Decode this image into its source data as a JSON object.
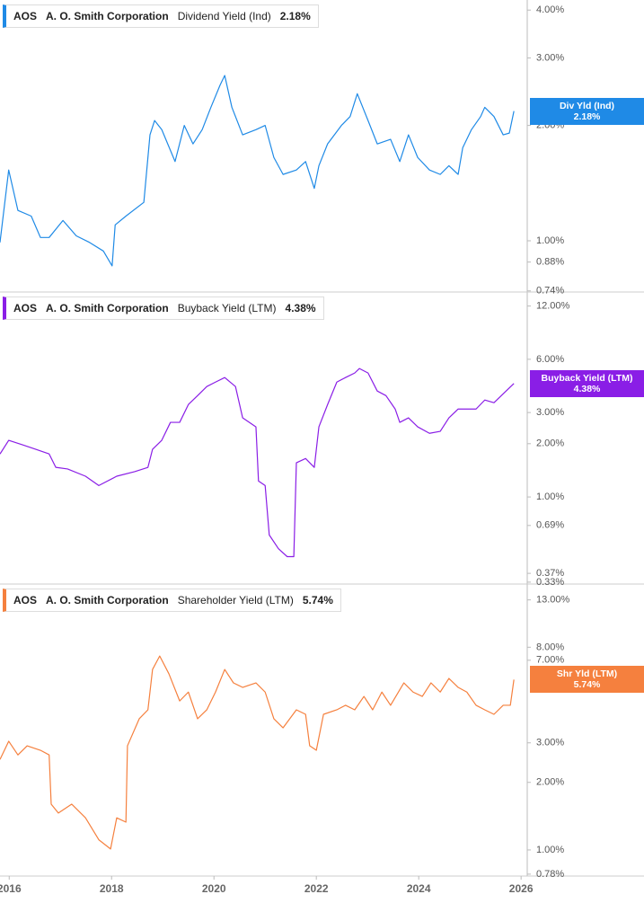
{
  "chart_data": [
    {
      "type": "line",
      "ticker": "AOS",
      "company": "A. O. Smith Corporation",
      "metric": "Dividend Yield (Ind)",
      "last_label": "2.18%",
      "tag": "Div Yld (Ind)",
      "tag_value": "2.18%",
      "color": "#1f8ae6",
      "log": true,
      "xlim": [
        2015.82,
        2026.12
      ],
      "ylim": [
        0.735,
        4.25
      ],
      "yticks": [
        {
          "value": 4,
          "label": "4.00%"
        },
        {
          "value": 3,
          "label": "3.00%"
        },
        {
          "value": 2,
          "label": "2.00%"
        },
        {
          "value": 1,
          "label": "1.00%"
        },
        {
          "value": 0.88,
          "label": "0.88%"
        },
        {
          "value": 0.74,
          "label": "0.74%"
        }
      ],
      "x": [
        2015.82,
        2015.99,
        2016.17,
        2016.43,
        2016.61,
        2016.78,
        2017.05,
        2017.31,
        2017.57,
        2017.84,
        2018.01,
        2018.07,
        2018.28,
        2018.63,
        2018.75,
        2018.84,
        2018.98,
        2019.24,
        2019.42,
        2019.59,
        2019.77,
        2019.94,
        2020.12,
        2020.21,
        2020.35,
        2020.56,
        2020.82,
        2021.0,
        2021.17,
        2021.35,
        2021.61,
        2021.79,
        2021.96,
        2022.05,
        2022.22,
        2022.49,
        2022.66,
        2022.8,
        2023.01,
        2023.19,
        2023.45,
        2023.63,
        2023.8,
        2023.98,
        2024.21,
        2024.42,
        2024.59,
        2024.77,
        2024.86,
        2025.03,
        2025.21,
        2025.29,
        2025.47,
        2025.65,
        2025.77,
        2025.86
      ],
      "values": [
        0.99,
        1.53,
        1.2,
        1.16,
        1.02,
        1.02,
        1.13,
        1.03,
        0.99,
        0.94,
        0.86,
        1.1,
        1.16,
        1.26,
        1.89,
        2.06,
        1.95,
        1.61,
        2.0,
        1.79,
        1.95,
        2.23,
        2.55,
        2.7,
        2.23,
        1.89,
        1.95,
        2.0,
        1.65,
        1.49,
        1.53,
        1.61,
        1.37,
        1.57,
        1.79,
        2.0,
        2.11,
        2.42,
        2.06,
        1.79,
        1.84,
        1.61,
        1.89,
        1.65,
        1.53,
        1.49,
        1.57,
        1.49,
        1.75,
        1.95,
        2.11,
        2.23,
        2.11,
        1.89,
        1.91,
        2.18
      ]
    },
    {
      "type": "line",
      "ticker": "AOS",
      "company": "A. O. Smith Corporation",
      "metric": "Buyback Yield (LTM)",
      "last_label": "4.38%",
      "tag": "Buyback Yield (LTM)",
      "tag_value": "4.38%",
      "color": "#8a1ee6",
      "log": true,
      "xlim": [
        2015.82,
        2026.12
      ],
      "ylim": [
        0.322,
        14.4
      ],
      "yticks": [
        {
          "value": 12,
          "label": "12.00%"
        },
        {
          "value": 6,
          "label": "6.00%"
        },
        {
          "value": 3,
          "label": "3.00%"
        },
        {
          "value": 2,
          "label": "2.00%"
        },
        {
          "value": 1,
          "label": "1.00%"
        },
        {
          "value": 0.69,
          "label": "0.69%"
        },
        {
          "value": 0.37,
          "label": "0.37%"
        },
        {
          "value": 0.33,
          "label": "0.33%"
        }
      ],
      "x": [
        2015.82,
        2015.99,
        2016.26,
        2016.52,
        2016.78,
        2016.91,
        2017.14,
        2017.49,
        2017.75,
        2018.1,
        2018.45,
        2018.71,
        2018.8,
        2018.98,
        2019.15,
        2019.33,
        2019.5,
        2019.68,
        2019.86,
        2020.03,
        2020.21,
        2020.42,
        2020.56,
        2020.82,
        2020.87,
        2021.0,
        2021.08,
        2021.26,
        2021.43,
        2021.56,
        2021.61,
        2021.79,
        2021.96,
        2022.05,
        2022.22,
        2022.4,
        2022.57,
        2022.75,
        2022.84,
        2023.01,
        2023.19,
        2023.36,
        2023.54,
        2023.63,
        2023.8,
        2023.98,
        2024.21,
        2024.42,
        2024.59,
        2024.77,
        2024.94,
        2025.12,
        2025.29,
        2025.47,
        2025.65,
        2025.86
      ],
      "values": [
        1.75,
        2.09,
        1.97,
        1.86,
        1.75,
        1.47,
        1.44,
        1.31,
        1.16,
        1.31,
        1.39,
        1.47,
        1.86,
        2.09,
        2.64,
        2.64,
        3.33,
        3.74,
        4.21,
        4.46,
        4.73,
        4.21,
        2.8,
        2.49,
        1.23,
        1.16,
        0.61,
        0.51,
        0.46,
        0.46,
        1.56,
        1.65,
        1.47,
        2.49,
        3.33,
        4.46,
        4.73,
        5.02,
        5.32,
        5.02,
        3.97,
        3.74,
        3.14,
        2.64,
        2.8,
        2.49,
        2.29,
        2.35,
        2.8,
        3.14,
        3.14,
        3.14,
        3.53,
        3.41,
        3.83,
        4.38
      ]
    },
    {
      "type": "line",
      "ticker": "AOS",
      "company": "A. O. Smith Corporation",
      "metric": "Shareholder Yield (LTM)",
      "last_label": "5.74%",
      "tag": "Shr Yld (LTM)",
      "tag_value": "5.74%",
      "color": "#f5803e",
      "log": true,
      "xlim": [
        2015.82,
        2026.12
      ],
      "ylim": [
        0.765,
        15.3
      ],
      "yticks": [
        {
          "value": 13,
          "label": "13.00%"
        },
        {
          "value": 8,
          "label": "8.00%"
        },
        {
          "value": 7,
          "label": "7.00%"
        },
        {
          "value": 3,
          "label": "3.00%"
        },
        {
          "value": 2,
          "label": "2.00%"
        },
        {
          "value": 1,
          "label": "1.00%"
        },
        {
          "value": 0.78,
          "label": "0.78%"
        }
      ],
      "xticks": [
        2016,
        2018,
        2020,
        2022,
        2024,
        2026
      ],
      "x": [
        2015.82,
        2015.99,
        2016.17,
        2016.35,
        2016.61,
        2016.78,
        2016.82,
        2016.96,
        2017.22,
        2017.49,
        2017.75,
        2017.98,
        2018.1,
        2018.28,
        2018.31,
        2018.54,
        2018.71,
        2018.8,
        2018.94,
        2019.12,
        2019.33,
        2019.5,
        2019.68,
        2019.86,
        2020.03,
        2020.21,
        2020.38,
        2020.56,
        2020.82,
        2021.0,
        2021.17,
        2021.35,
        2021.61,
        2021.79,
        2021.87,
        2022.0,
        2022.14,
        2022.4,
        2022.57,
        2022.75,
        2022.93,
        2023.1,
        2023.28,
        2023.45,
        2023.71,
        2023.89,
        2024.07,
        2024.24,
        2024.42,
        2024.59,
        2024.77,
        2024.94,
        2025.12,
        2025.29,
        2025.47,
        2025.65,
        2025.79,
        2025.86
      ],
      "values": [
        2.53,
        3.05,
        2.65,
        2.91,
        2.78,
        2.65,
        1.6,
        1.46,
        1.6,
        1.39,
        1.11,
        1.01,
        1.39,
        1.33,
        2.91,
        3.84,
        4.21,
        6.37,
        7.31,
        6.09,
        4.61,
        5.05,
        3.84,
        4.21,
        5.05,
        6.37,
        5.55,
        5.3,
        5.55,
        5.05,
        3.84,
        3.5,
        4.21,
        4.02,
        2.91,
        2.78,
        4.02,
        4.21,
        4.41,
        4.21,
        4.83,
        4.21,
        5.05,
        4.41,
        5.55,
        5.05,
        4.83,
        5.55,
        5.05,
        5.81,
        5.3,
        5.05,
        4.41,
        4.21,
        4.02,
        4.41,
        4.41,
        5.74
      ]
    }
  ]
}
